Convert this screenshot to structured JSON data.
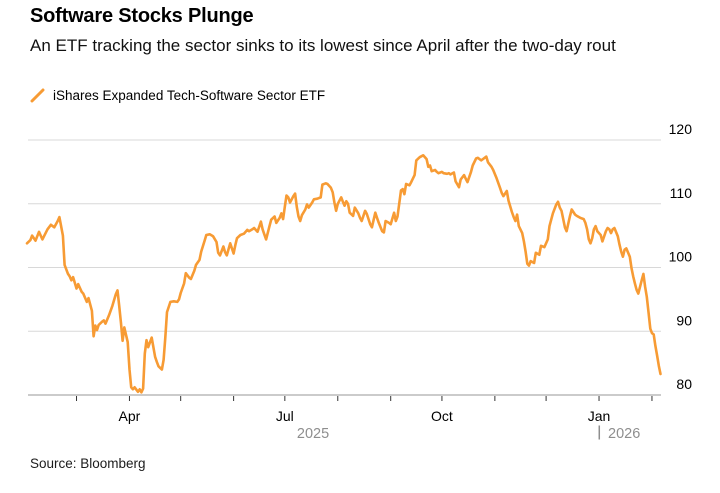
{
  "header": {
    "title": "Software Stocks Plunge",
    "subtitle": "An ETF tracking the sector sinks to its lowest since April after the two-day rout"
  },
  "legend": {
    "label": "iShares Expanded Tech-Software Sector ETF"
  },
  "source": "Source: Bloomberg",
  "colors": {
    "line": "#F79B34",
    "grid": "#D8D8D8",
    "axis": "#ACACAC",
    "tick": "#333333",
    "axis_text": "#000000",
    "year_text": "#8E8E8E"
  },
  "chart_data": {
    "type": "line",
    "title": "Software Stocks Plunge",
    "series_name": "iShares Expanded Tech-Software Sector ETF",
    "grid": "horizontal",
    "legend_position": "top-left",
    "ylim": [
      80,
      120
    ],
    "yticks": [
      80,
      90,
      100,
      110,
      120
    ],
    "x_range": [
      "2025-01-31",
      "2026-02-06"
    ],
    "xticks": [
      {
        "date": "2025-03-01",
        "label": ""
      },
      {
        "date": "2025-04-01",
        "label": "Apr"
      },
      {
        "date": "2025-05-01",
        "label": ""
      },
      {
        "date": "2025-06-01",
        "label": ""
      },
      {
        "date": "2025-07-01",
        "label": "Jul"
      },
      {
        "date": "2025-08-01",
        "label": ""
      },
      {
        "date": "2025-09-01",
        "label": ""
      },
      {
        "date": "2025-10-01",
        "label": "Oct"
      },
      {
        "date": "2025-11-01",
        "label": ""
      },
      {
        "date": "2025-12-01",
        "label": ""
      },
      {
        "date": "2026-01-01",
        "label": "Jan"
      },
      {
        "date": "2026-02-01",
        "label": ""
      }
    ],
    "year_labels": [
      {
        "label": "2025",
        "position": "center"
      },
      {
        "label": "2026",
        "position": "after-divider"
      }
    ],
    "points": [
      [
        "2025-01-31",
        103.8
      ],
      [
        "2025-02-02",
        104.3
      ],
      [
        "2025-02-03",
        105.0
      ],
      [
        "2025-02-05",
        104.2
      ],
      [
        "2025-02-07",
        105.6
      ],
      [
        "2025-02-09",
        104.4
      ],
      [
        "2025-02-12",
        106.0
      ],
      [
        "2025-02-14",
        106.7
      ],
      [
        "2025-02-16",
        106.3
      ],
      [
        "2025-02-18",
        107.3
      ],
      [
        "2025-02-19",
        107.9
      ],
      [
        "2025-02-21",
        105.0
      ],
      [
        "2025-02-22",
        100.4
      ],
      [
        "2025-02-24",
        99.0
      ],
      [
        "2025-02-25",
        98.6
      ],
      [
        "2025-02-26",
        98.0
      ],
      [
        "2025-02-27",
        98.5
      ],
      [
        "2025-03-01",
        96.7
      ],
      [
        "2025-03-02",
        97.4
      ],
      [
        "2025-03-04",
        96.2
      ],
      [
        "2025-03-05",
        95.9
      ],
      [
        "2025-03-07",
        94.6
      ],
      [
        "2025-03-08",
        95.2
      ],
      [
        "2025-03-10",
        93.2
      ],
      [
        "2025-03-11",
        89.2
      ],
      [
        "2025-03-12",
        90.9
      ],
      [
        "2025-03-13",
        90.2
      ],
      [
        "2025-03-14",
        91.0
      ],
      [
        "2025-03-16",
        91.5
      ],
      [
        "2025-03-17",
        91.7
      ],
      [
        "2025-03-18",
        91.2
      ],
      [
        "2025-03-20",
        92.5
      ],
      [
        "2025-03-22",
        94.0
      ],
      [
        "2025-03-24",
        95.8
      ],
      [
        "2025-03-25",
        96.4
      ],
      [
        "2025-03-26",
        94.0
      ],
      [
        "2025-03-27",
        91.4
      ],
      [
        "2025-03-28",
        88.5
      ],
      [
        "2025-03-29",
        90.6
      ],
      [
        "2025-03-31",
        88.3
      ],
      [
        "2025-04-01",
        84.0
      ],
      [
        "2025-04-02",
        81.2
      ],
      [
        "2025-04-03",
        80.9
      ],
      [
        "2025-04-04",
        81.2
      ],
      [
        "2025-04-06",
        80.5
      ],
      [
        "2025-04-07",
        80.9
      ],
      [
        "2025-04-08",
        80.4
      ],
      [
        "2025-04-09",
        81.0
      ],
      [
        "2025-04-10",
        86.5
      ],
      [
        "2025-04-11",
        88.6
      ],
      [
        "2025-04-12",
        87.5
      ],
      [
        "2025-04-14",
        89.0
      ],
      [
        "2025-04-16",
        86.0
      ],
      [
        "2025-04-17",
        85.2
      ],
      [
        "2025-04-18",
        84.5
      ],
      [
        "2025-04-20",
        84.0
      ],
      [
        "2025-04-21",
        85.5
      ],
      [
        "2025-04-22",
        89.0
      ],
      [
        "2025-04-23",
        93.0
      ],
      [
        "2025-04-25",
        94.6
      ],
      [
        "2025-04-27",
        94.7
      ],
      [
        "2025-04-29",
        94.6
      ],
      [
        "2025-04-30",
        95.0
      ],
      [
        "2025-05-01",
        96.0
      ],
      [
        "2025-05-03",
        97.5
      ],
      [
        "2025-05-04",
        99.1
      ],
      [
        "2025-05-06",
        98.4
      ],
      [
        "2025-05-07",
        98.2
      ],
      [
        "2025-05-09",
        99.5
      ],
      [
        "2025-05-10",
        100.4
      ],
      [
        "2025-05-12",
        101.2
      ],
      [
        "2025-05-13",
        102.5
      ],
      [
        "2025-05-15",
        104.2
      ],
      [
        "2025-05-16",
        105.1
      ],
      [
        "2025-05-18",
        105.2
      ],
      [
        "2025-05-20",
        104.9
      ],
      [
        "2025-05-22",
        104.0
      ],
      [
        "2025-05-23",
        102.3
      ],
      [
        "2025-05-24",
        101.9
      ],
      [
        "2025-05-26",
        103.3
      ],
      [
        "2025-05-27",
        102.4
      ],
      [
        "2025-05-28",
        101.9
      ],
      [
        "2025-05-30",
        103.8
      ],
      [
        "2025-06-01",
        102.2
      ],
      [
        "2025-06-02",
        103.5
      ],
      [
        "2025-06-03",
        104.6
      ],
      [
        "2025-06-05",
        105.1
      ],
      [
        "2025-06-07",
        105.3
      ],
      [
        "2025-06-09",
        105.9
      ],
      [
        "2025-06-10",
        105.7
      ],
      [
        "2025-06-12",
        106.0
      ],
      [
        "2025-06-13",
        106.2
      ],
      [
        "2025-06-15",
        105.6
      ],
      [
        "2025-06-17",
        107.2
      ],
      [
        "2025-06-18",
        106.0
      ],
      [
        "2025-06-19",
        105.2
      ],
      [
        "2025-06-20",
        104.4
      ],
      [
        "2025-06-22",
        106.5
      ],
      [
        "2025-06-23",
        107.5
      ],
      [
        "2025-06-25",
        108.0
      ],
      [
        "2025-06-26",
        107.0
      ],
      [
        "2025-06-28",
        107.8
      ],
      [
        "2025-06-29",
        108.5
      ],
      [
        "2025-06-30",
        107.6
      ],
      [
        "2025-07-01",
        109.5
      ],
      [
        "2025-07-02",
        111.3
      ],
      [
        "2025-07-03",
        111.0
      ],
      [
        "2025-07-04",
        110.2
      ],
      [
        "2025-07-06",
        111.2
      ],
      [
        "2025-07-07",
        111.6
      ],
      [
        "2025-07-08",
        109.5
      ],
      [
        "2025-07-09",
        108.0
      ],
      [
        "2025-07-10",
        107.3
      ],
      [
        "2025-07-11",
        108.2
      ],
      [
        "2025-07-13",
        109.1
      ],
      [
        "2025-07-14",
        109.9
      ],
      [
        "2025-07-15",
        109.4
      ],
      [
        "2025-07-17",
        110.2
      ],
      [
        "2025-07-18",
        110.7
      ],
      [
        "2025-07-20",
        110.8
      ],
      [
        "2025-07-22",
        111.0
      ],
      [
        "2025-07-23",
        113.0
      ],
      [
        "2025-07-25",
        113.2
      ],
      [
        "2025-07-26",
        113.1
      ],
      [
        "2025-07-28",
        112.5
      ],
      [
        "2025-07-29",
        111.8
      ],
      [
        "2025-07-30",
        110.2
      ],
      [
        "2025-07-31",
        108.9
      ],
      [
        "2025-08-01",
        110.0
      ],
      [
        "2025-08-03",
        111.0
      ],
      [
        "2025-08-04",
        110.3
      ],
      [
        "2025-08-05",
        109.7
      ],
      [
        "2025-08-06",
        110.4
      ],
      [
        "2025-08-07",
        110.0
      ],
      [
        "2025-08-08",
        108.6
      ],
      [
        "2025-08-10",
        108.1
      ],
      [
        "2025-08-11",
        109.4
      ],
      [
        "2025-08-13",
        108.5
      ],
      [
        "2025-08-14",
        107.8
      ],
      [
        "2025-08-15",
        107.3
      ],
      [
        "2025-08-17",
        108.9
      ],
      [
        "2025-08-18",
        108.4
      ],
      [
        "2025-08-20",
        106.8
      ],
      [
        "2025-08-21",
        106.3
      ],
      [
        "2025-08-23",
        108.6
      ],
      [
        "2025-08-24",
        107.8
      ],
      [
        "2025-08-25",
        107.0
      ],
      [
        "2025-08-27",
        105.7
      ],
      [
        "2025-08-28",
        105.5
      ],
      [
        "2025-08-29",
        107.3
      ],
      [
        "2025-08-31",
        107.0
      ],
      [
        "2025-09-01",
        106.8
      ],
      [
        "2025-09-03",
        108.6
      ],
      [
        "2025-09-04",
        107.3
      ],
      [
        "2025-09-05",
        108.0
      ],
      [
        "2025-09-07",
        112.1
      ],
      [
        "2025-09-08",
        112.3
      ],
      [
        "2025-09-09",
        111.5
      ],
      [
        "2025-09-10",
        113.1
      ],
      [
        "2025-09-12",
        112.9
      ],
      [
        "2025-09-13",
        113.4
      ],
      [
        "2025-09-15",
        114.5
      ],
      [
        "2025-09-16",
        116.8
      ],
      [
        "2025-09-18",
        117.3
      ],
      [
        "2025-09-20",
        117.6
      ],
      [
        "2025-09-22",
        117.0
      ],
      [
        "2025-09-23",
        115.8
      ],
      [
        "2025-09-24",
        116.0
      ],
      [
        "2025-09-25",
        115.1
      ],
      [
        "2025-09-27",
        115.3
      ],
      [
        "2025-09-28",
        115.0
      ],
      [
        "2025-09-29",
        114.8
      ],
      [
        "2025-10-01",
        115.0
      ],
      [
        "2025-10-02",
        114.8
      ],
      [
        "2025-10-04",
        114.7
      ],
      [
        "2025-10-05",
        114.8
      ],
      [
        "2025-10-06",
        114.6
      ],
      [
        "2025-10-08",
        114.9
      ],
      [
        "2025-10-09",
        113.5
      ],
      [
        "2025-10-11",
        112.6
      ],
      [
        "2025-10-12",
        113.8
      ],
      [
        "2025-10-14",
        114.5
      ],
      [
        "2025-10-15",
        113.9
      ],
      [
        "2025-10-16",
        113.4
      ],
      [
        "2025-10-18",
        115.0
      ],
      [
        "2025-10-19",
        116.0
      ],
      [
        "2025-10-21",
        117.1
      ],
      [
        "2025-10-22",
        117.2
      ],
      [
        "2025-10-24",
        116.8
      ],
      [
        "2025-10-25",
        117.0
      ],
      [
        "2025-10-27",
        117.4
      ],
      [
        "2025-10-28",
        116.5
      ],
      [
        "2025-10-30",
        115.8
      ],
      [
        "2025-10-31",
        115.3
      ],
      [
        "2025-11-02",
        114.0
      ],
      [
        "2025-11-04",
        112.5
      ],
      [
        "2025-11-05",
        111.7
      ],
      [
        "2025-11-06",
        111.2
      ],
      [
        "2025-11-08",
        112.0
      ],
      [
        "2025-11-09",
        110.5
      ],
      [
        "2025-11-11",
        108.7
      ],
      [
        "2025-11-12",
        107.9
      ],
      [
        "2025-11-13",
        107.3
      ],
      [
        "2025-11-14",
        108.3
      ],
      [
        "2025-11-15",
        106.5
      ],
      [
        "2025-11-17",
        105.4
      ],
      [
        "2025-11-18",
        104.1
      ],
      [
        "2025-11-19",
        102.5
      ],
      [
        "2025-11-20",
        100.6
      ],
      [
        "2025-11-21",
        100.3
      ],
      [
        "2025-11-22",
        101.0
      ],
      [
        "2025-11-24",
        100.7
      ],
      [
        "2025-11-25",
        102.3
      ],
      [
        "2025-11-27",
        102.0
      ],
      [
        "2025-11-28",
        103.4
      ],
      [
        "2025-11-30",
        103.2
      ],
      [
        "2025-12-02",
        104.4
      ],
      [
        "2025-12-03",
        106.5
      ],
      [
        "2025-12-05",
        108.5
      ],
      [
        "2025-12-07",
        109.9
      ],
      [
        "2025-12-08",
        110.3
      ],
      [
        "2025-12-09",
        109.4
      ],
      [
        "2025-12-10",
        108.9
      ],
      [
        "2025-12-12",
        106.3
      ],
      [
        "2025-12-13",
        105.7
      ],
      [
        "2025-12-15",
        108.1
      ],
      [
        "2025-12-16",
        109.1
      ],
      [
        "2025-12-18",
        108.3
      ],
      [
        "2025-12-19",
        108.1
      ],
      [
        "2025-12-21",
        107.8
      ],
      [
        "2025-12-23",
        107.6
      ],
      [
        "2025-12-24",
        107.0
      ],
      [
        "2025-12-25",
        106.0
      ],
      [
        "2025-12-26",
        104.4
      ],
      [
        "2025-12-27",
        103.8
      ],
      [
        "2025-12-28",
        104.6
      ],
      [
        "2025-12-29",
        106.0
      ],
      [
        "2025-12-30",
        106.5
      ],
      [
        "2025-12-31",
        105.7
      ],
      [
        "2026-01-02",
        105.1
      ],
      [
        "2026-01-03",
        104.1
      ],
      [
        "2026-01-05",
        105.7
      ],
      [
        "2026-01-06",
        106.2
      ],
      [
        "2026-01-07",
        106.0
      ],
      [
        "2026-01-08",
        105.4
      ],
      [
        "2026-01-09",
        106.0
      ],
      [
        "2026-01-10",
        106.2
      ],
      [
        "2026-01-12",
        104.9
      ],
      [
        "2026-01-13",
        103.6
      ],
      [
        "2026-01-14",
        102.5
      ],
      [
        "2026-01-15",
        101.7
      ],
      [
        "2026-01-16",
        102.8
      ],
      [
        "2026-01-17",
        103.0
      ],
      [
        "2026-01-19",
        101.7
      ],
      [
        "2026-01-20",
        99.9
      ],
      [
        "2026-01-21",
        98.6
      ],
      [
        "2026-01-22",
        97.5
      ],
      [
        "2026-01-23",
        96.5
      ],
      [
        "2026-01-24",
        95.9
      ],
      [
        "2026-01-26",
        98.0
      ],
      [
        "2026-01-27",
        99.0
      ],
      [
        "2026-01-28",
        97.0
      ],
      [
        "2026-01-29",
        95.4
      ],
      [
        "2026-01-30",
        93.0
      ],
      [
        "2026-01-31",
        90.4
      ],
      [
        "2026-02-01",
        89.7
      ],
      [
        "2026-02-02",
        89.5
      ],
      [
        "2026-02-03",
        87.7
      ],
      [
        "2026-02-04",
        86.2
      ],
      [
        "2026-02-05",
        84.6
      ],
      [
        "2026-02-06",
        83.3
      ]
    ]
  }
}
